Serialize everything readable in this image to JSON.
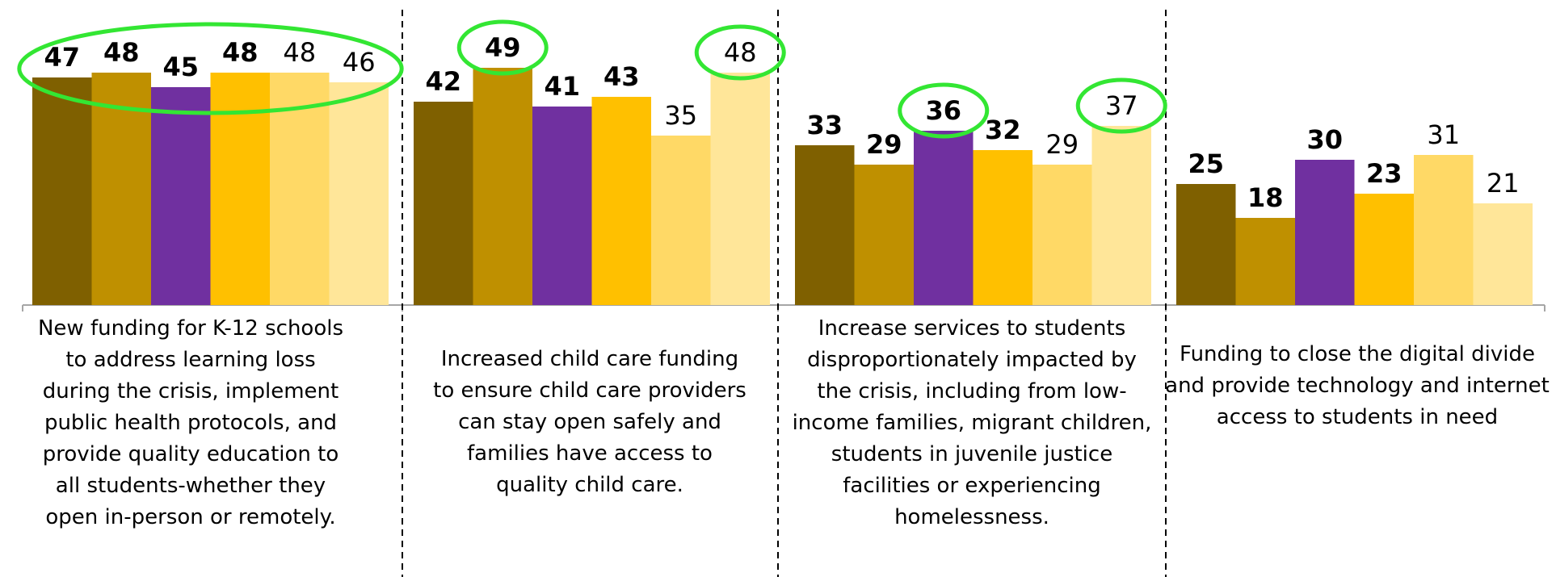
{
  "chart_data": {
    "type": "bar",
    "categories": [
      "New funding for K-12 schools to address learning loss during the crisis, implement public health protocols, and provide quality education to all students-whether they open in-person or remotely.",
      "Increased child care funding to ensure child care providers can stay open safely and families have access to quality child care.",
      "Increase services to students disproportionately impacted by the crisis, including from low-income families, migrant children, students in juvenile justice facilities or experiencing homelessness.",
      "Funding to close the digital divide and provide technology and internet access to students in need"
    ],
    "series": [
      {
        "color": "#7F6000",
        "bold": true,
        "values": [
          47,
          42,
          33,
          25
        ]
      },
      {
        "color": "#BF9000",
        "bold": true,
        "values": [
          48,
          49,
          29,
          18
        ]
      },
      {
        "color": "#7030A0",
        "bold": true,
        "values": [
          45,
          41,
          36,
          30
        ]
      },
      {
        "color": "#FFC000",
        "bold": true,
        "values": [
          48,
          43,
          32,
          23
        ]
      },
      {
        "color": "#FFD966",
        "bold": false,
        "values": [
          48,
          35,
          29,
          31
        ]
      },
      {
        "color": "#FFE699",
        "bold": false,
        "values": [
          46,
          48,
          37,
          21
        ]
      }
    ],
    "ylim": [
      0,
      60
    ],
    "grid": false,
    "legend": "none",
    "highlight_color": "#33E633",
    "highlights": [
      {
        "group": 0,
        "series": [
          0,
          1,
          2,
          3,
          4,
          5
        ]
      },
      {
        "group": 1,
        "series": [
          1
        ]
      },
      {
        "group": 1,
        "series": [
          5
        ]
      },
      {
        "group": 2,
        "series": [
          2
        ]
      },
      {
        "group": 2,
        "series": [
          5
        ]
      }
    ]
  }
}
